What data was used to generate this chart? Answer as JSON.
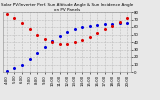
{
  "title": "Solar PV/Inverter Perf. Sun Altitude Angle & Sun Incidence Angle on PV Panels",
  "blue_x": [
    0,
    1,
    2,
    3,
    4,
    5,
    6,
    7,
    8,
    9,
    10,
    11,
    12,
    13,
    14,
    15,
    16
  ],
  "blue_y": [
    2,
    5,
    10,
    18,
    26,
    34,
    42,
    48,
    53,
    57,
    60,
    62,
    63,
    64,
    64,
    65,
    65
  ],
  "red_x": [
    0,
    1,
    2,
    3,
    4,
    5,
    6,
    7,
    8,
    9,
    10,
    11,
    12,
    13,
    14,
    15,
    16
  ],
  "red_y": [
    78,
    72,
    65,
    57,
    50,
    44,
    40,
    38,
    38,
    40,
    43,
    47,
    52,
    57,
    62,
    67,
    72
  ],
  "xlim": [
    -0.5,
    16.5
  ],
  "ylim": [
    0,
    80
  ],
  "yticks": [
    0,
    10,
    20,
    30,
    40,
    50,
    60,
    70,
    80
  ],
  "ytick_labels": [
    "0",
    "10",
    "20",
    "30",
    "40",
    "50",
    "60",
    "70",
    "80"
  ],
  "xtick_labels": [
    "4:00",
    "5:00",
    "6:00",
    "7:00",
    "8:00",
    "9:00",
    "10:00",
    "11:00",
    "12:00",
    "13:00",
    "14:00",
    "15:00",
    "16:00",
    "17:00",
    "18:00",
    "19:00",
    "20:00"
  ],
  "blue_color": "#0000dd",
  "red_color": "#dd0000",
  "bg_color": "#e8e8e8",
  "grid_color": "#bbbbbb",
  "title_fontsize": 3.0,
  "tick_fontsize": 2.8,
  "marker_size": 1.2
}
